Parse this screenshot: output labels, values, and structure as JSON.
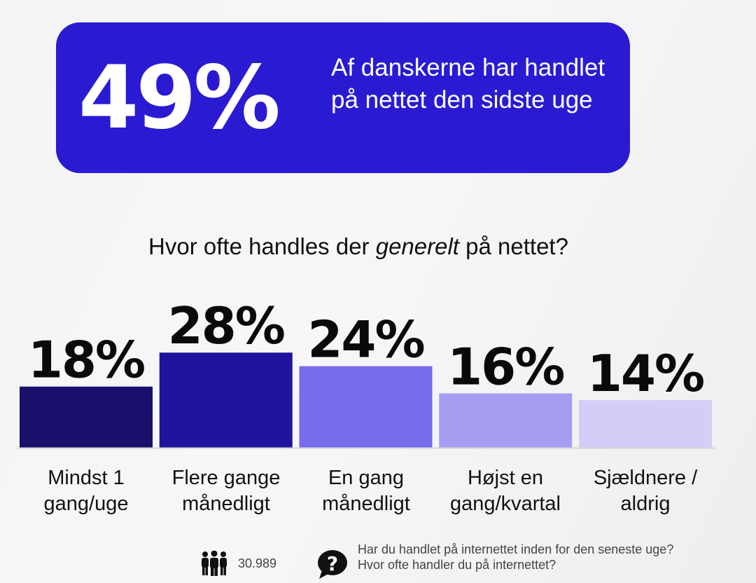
{
  "banner": {
    "big_value": "49%",
    "description": "Af danskerne har handlet på nettet den sidste uge",
    "color": "#2a1bd2"
  },
  "chart_data": {
    "type": "bar",
    "title_parts": [
      "Hvor ofte handles der ",
      "generelt",
      " på nettet?"
    ],
    "categories": [
      "Mindst 1 gang/uge",
      "Flere gange månedligt",
      "En gang månedligt",
      "Højst en gang/kvartal",
      "Sjældnere / aldrig"
    ],
    "values": [
      18,
      28,
      24,
      16,
      14
    ],
    "value_labels": [
      "18%",
      "28%",
      "24%",
      "16%",
      "14%"
    ],
    "colors": [
      "#18106a",
      "#21139e",
      "#786bec",
      "#a69df3",
      "#d2cef8"
    ],
    "grid": false,
    "legend": "none"
  },
  "footer": {
    "respondents": "30.989",
    "people_icon": "people-icon",
    "question_icon": "question-icon",
    "question_line1": "Har du handlet på internettet inden for den seneste uge?",
    "question_line2": "Hvor ofte handler du på internettet?"
  }
}
